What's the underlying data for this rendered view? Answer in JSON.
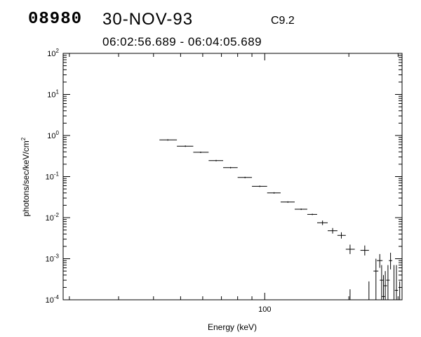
{
  "header": {
    "id": "08980",
    "date": "30-NOV-93",
    "flare_class": "C9.2",
    "time_range": "06:02:56.689 - 06:04:05.689"
  },
  "chart_data": {
    "type": "scatter",
    "title": "",
    "xlabel": "Energy (keV)",
    "ylabel": "photons/sec/keV/cm",
    "ylabel_sup": "2",
    "x_scale": "log",
    "y_scale": "log",
    "xlim": [
      19,
      310
    ],
    "ylim": [
      0.0001,
      100
    ],
    "x_ticks": [
      {
        "value": 100,
        "label": "100"
      }
    ],
    "y_ticks": [
      {
        "value": 100,
        "base": "10",
        "exp": "2"
      },
      {
        "value": 10,
        "base": "10",
        "exp": "1"
      },
      {
        "value": 1,
        "base": "10",
        "exp": "0"
      },
      {
        "value": 0.1,
        "base": "10",
        "exp": "-1"
      },
      {
        "value": 0.01,
        "base": "10",
        "exp": "-2"
      },
      {
        "value": 0.001,
        "base": "10",
        "exp": "-3"
      },
      {
        "value": 0.0001,
        "base": "10",
        "exp": "-4"
      }
    ],
    "grid": false,
    "series": [
      {
        "points": [
          {
            "x": 45,
            "xlo": 42,
            "xhi": 48.5,
            "y": 0.78
          },
          {
            "x": 52,
            "xlo": 48.5,
            "xhi": 55.5,
            "y": 0.55
          },
          {
            "x": 59,
            "xlo": 55.5,
            "xhi": 63,
            "y": 0.39
          },
          {
            "x": 67,
            "xlo": 63,
            "xhi": 71,
            "y": 0.245
          },
          {
            "x": 75.5,
            "xlo": 71,
            "xhi": 80,
            "y": 0.165
          },
          {
            "x": 85,
            "xlo": 80,
            "xhi": 90,
            "y": 0.095
          },
          {
            "x": 96,
            "xlo": 90,
            "xhi": 102,
            "y": 0.058
          },
          {
            "x": 108,
            "xlo": 102,
            "xhi": 114,
            "y": 0.04
          },
          {
            "x": 121,
            "xlo": 114,
            "xhi": 128,
            "y": 0.024
          },
          {
            "x": 135,
            "xlo": 128,
            "xhi": 142,
            "y": 0.016
          },
          {
            "x": 148,
            "xlo": 142,
            "xhi": 154,
            "y": 0.012
          },
          {
            "x": 161,
            "xlo": 154,
            "xhi": 168,
            "y": 0.0075,
            "ylo": 0.0066,
            "yhi": 0.0085
          },
          {
            "x": 175,
            "xlo": 168,
            "xhi": 182,
            "y": 0.0048,
            "ylo": 0.0041,
            "yhi": 0.0056
          },
          {
            "x": 188,
            "xlo": 182,
            "xhi": 195,
            "y": 0.0037,
            "ylo": 0.0031,
            "yhi": 0.0044
          },
          {
            "x": 202,
            "xlo": 195,
            "xhi": 210,
            "y": 0.0017,
            "ylo": 0.0013,
            "yhi": 0.0022
          },
          {
            "x": 228,
            "xlo": 220,
            "xhi": 236,
            "y": 0.0016,
            "ylo": 0.0012,
            "yhi": 0.0021
          },
          {
            "x": 202,
            "xlo": 202,
            "xhi": 202,
            "y": 7e-05,
            "ylo": 7e-05,
            "yhi": 0.00018
          },
          {
            "x": 236,
            "xlo": 236,
            "xhi": 236,
            "y": 7e-05,
            "ylo": 7e-05,
            "yhi": 0.00028
          },
          {
            "x": 250,
            "xlo": 245,
            "xhi": 255,
            "y": 0.0005,
            "ylo": 7e-05,
            "yhi": 0.001
          },
          {
            "x": 258,
            "xlo": 252,
            "xhi": 264,
            "y": 0.0009,
            "ylo": 0.0006,
            "yhi": 0.0013
          },
          {
            "x": 262,
            "xlo": 258,
            "xhi": 267,
            "y": 0.0003,
            "ylo": 7e-05,
            "yhi": 0.0007
          },
          {
            "x": 266,
            "xlo": 262,
            "xhi": 270,
            "y": 0.00012,
            "ylo": 7e-05,
            "yhi": 0.0004
          },
          {
            "x": 270,
            "xlo": 266,
            "xhi": 274,
            "y": 0.00022,
            "ylo": 7e-05,
            "yhi": 0.0005
          },
          {
            "x": 276,
            "xlo": 272,
            "xhi": 280,
            "y": 0.0003,
            "ylo": 7e-05,
            "yhi": 0.0007
          },
          {
            "x": 282,
            "xlo": 278,
            "xhi": 286,
            "y": 0.0009,
            "ylo": 0.00055,
            "yhi": 0.0014
          },
          {
            "x": 290,
            "xlo": 286,
            "xhi": 294,
            "y": 7e-05,
            "ylo": 7e-05,
            "yhi": 0.0007
          },
          {
            "x": 296,
            "xlo": 292,
            "xhi": 300,
            "y": 0.00017,
            "ylo": 7e-05,
            "yhi": 0.0007
          },
          {
            "x": 304,
            "xlo": 304,
            "xhi": 304,
            "y": 7e-05,
            "ylo": 7e-05,
            "yhi": 0.00028
          }
        ]
      }
    ]
  }
}
